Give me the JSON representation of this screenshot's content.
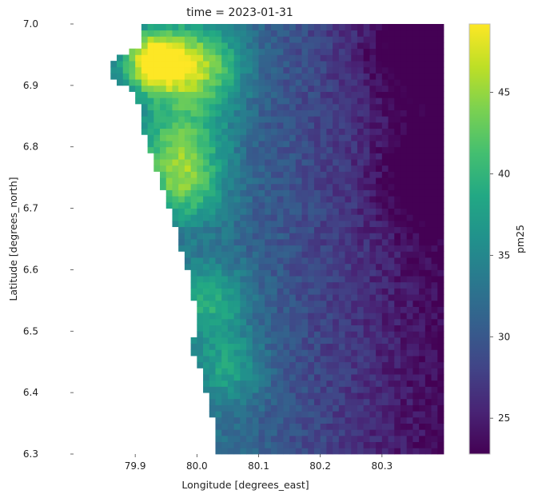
{
  "chart_data": {
    "type": "heatmap",
    "title": "time = 2023-01-31",
    "xlabel": "Longitude [degrees_east]",
    "ylabel": "Latitude [degrees_north]",
    "colorbar_label": "pm25",
    "xlim": [
      79.8,
      80.4
    ],
    "ylim": [
      6.3,
      7.0
    ],
    "xticks": [
      79.9,
      80.0,
      80.1,
      80.2,
      80.3
    ],
    "xtick_labels": [
      "79.9",
      "80.0",
      "80.1",
      "80.2",
      "80.3"
    ],
    "yticks": [
      6.3,
      6.4,
      6.5,
      6.6,
      6.7,
      6.8,
      6.9,
      7.0
    ],
    "ytick_labels": [
      "6.3",
      "6.4",
      "6.5",
      "6.6",
      "6.7",
      "6.8",
      "6.9",
      "7.0"
    ],
    "colorbar_range": [
      22.8,
      49.2
    ],
    "colorbar_ticks": [
      25,
      30,
      35,
      40,
      45
    ],
    "colorbar_tick_labels": [
      "25",
      "30",
      "35",
      "40",
      "45"
    ],
    "colormap": "viridis",
    "grid": false,
    "coastline": [
      {
        "lat": 7.0,
        "lon": 79.913
      },
      {
        "lat": 6.96,
        "lon": 79.905
      },
      {
        "lat": 6.94,
        "lon": 79.86
      },
      {
        "lat": 6.91,
        "lon": 79.86
      },
      {
        "lat": 6.89,
        "lon": 79.9
      },
      {
        "lat": 6.85,
        "lon": 79.91
      },
      {
        "lat": 6.8,
        "lon": 79.92
      },
      {
        "lat": 6.75,
        "lon": 79.94
      },
      {
        "lat": 6.7,
        "lon": 79.955
      },
      {
        "lat": 6.65,
        "lon": 79.97
      },
      {
        "lat": 6.6,
        "lon": 79.985
      },
      {
        "lat": 6.55,
        "lon": 79.995
      },
      {
        "lat": 6.5,
        "lon": 80.0
      },
      {
        "lat": 6.47,
        "lon": 79.99
      },
      {
        "lat": 6.45,
        "lon": 80.0
      },
      {
        "lat": 6.42,
        "lon": 80.01
      },
      {
        "lat": 6.38,
        "lon": 80.02
      },
      {
        "lat": 6.34,
        "lon": 80.03
      },
      {
        "lat": 6.3,
        "lon": 80.035
      }
    ],
    "value_field": {
      "background": 32,
      "east_gradient": {
        "lon_start": 80.05,
        "lon_end": 80.4,
        "drop": 9
      },
      "peaks": [
        {
          "lat": 6.94,
          "lon": 79.93,
          "value": 49,
          "spread": 0.05
        },
        {
          "lat": 6.93,
          "lon": 80.0,
          "value": 45,
          "spread": 0.07
        },
        {
          "lat": 6.8,
          "lon": 79.97,
          "value": 42,
          "spread": 0.07
        },
        {
          "lat": 6.73,
          "lon": 79.98,
          "value": 40,
          "spread": 0.06
        },
        {
          "lat": 6.55,
          "lon": 80.02,
          "value": 39,
          "spread": 0.06
        },
        {
          "lat": 6.44,
          "lon": 80.05,
          "value": 38,
          "spread": 0.06
        }
      ],
      "lows": [
        {
          "lat": 6.75,
          "lon": 80.38,
          "value": 23,
          "spread": 0.08
        },
        {
          "lat": 6.95,
          "lon": 80.35,
          "value": 24,
          "spread": 0.08
        }
      ]
    }
  }
}
